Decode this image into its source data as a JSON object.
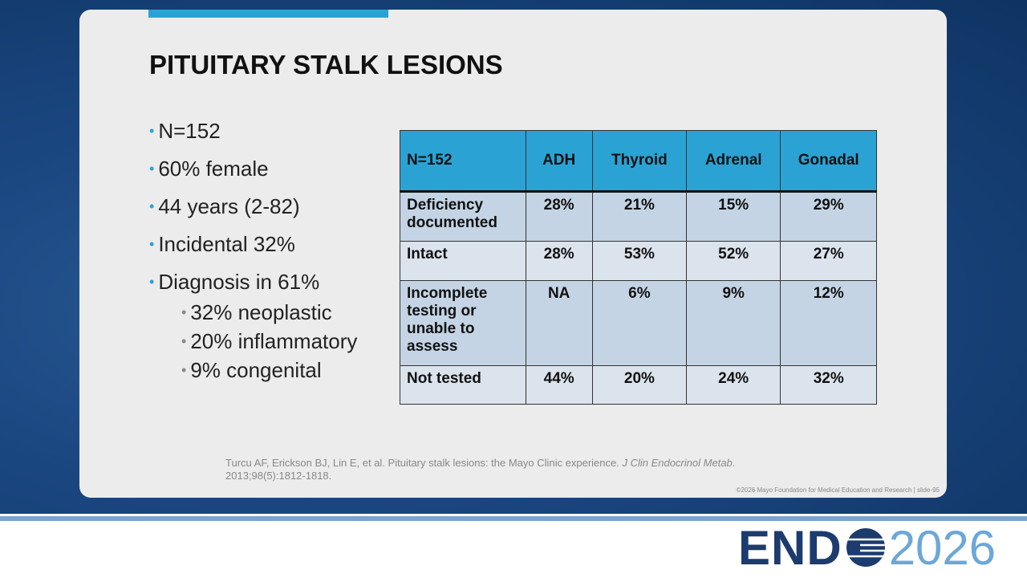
{
  "header": {
    "title": "PITUITARY STALK LESIONS"
  },
  "bullets": [
    {
      "text": "N=152"
    },
    {
      "text": "60% female"
    },
    {
      "text": "44 years (2-82)"
    },
    {
      "text": "Incidental 32%"
    },
    {
      "text": "Diagnosis in 61%",
      "sub": [
        "32% neoplastic",
        "20% inflammatory",
        "9% congenital"
      ]
    }
  ],
  "table": {
    "header": [
      "N=152",
      "ADH",
      "Thyroid",
      "Adrenal",
      "Gonadal"
    ],
    "rows": [
      [
        "Deficiency documented",
        "28%",
        "21%",
        "15%",
        "29%"
      ],
      [
        "Intact",
        "28%",
        "53%",
        "52%",
        "27%"
      ],
      [
        "Incomplete testing or unable to assess",
        "NA",
        "6%",
        "9%",
        "12%"
      ],
      [
        "Not tested",
        "44%",
        "20%",
        "24%",
        "32%"
      ]
    ]
  },
  "citation": {
    "authors": "Turcu AF, Erickson BJ, Lin E, et al. Pituitary stalk lesions: the Mayo Clinic experience. ",
    "journal": "J Clin Endocrinol Metab",
    "details": ". 2013;98(5):1812-1818."
  },
  "footer": {
    "copyright": "©2026 Mayo Foundation for Medical Education and Research  |  slide-95"
  },
  "logo": {
    "left": "END",
    "right": "2026"
  }
}
